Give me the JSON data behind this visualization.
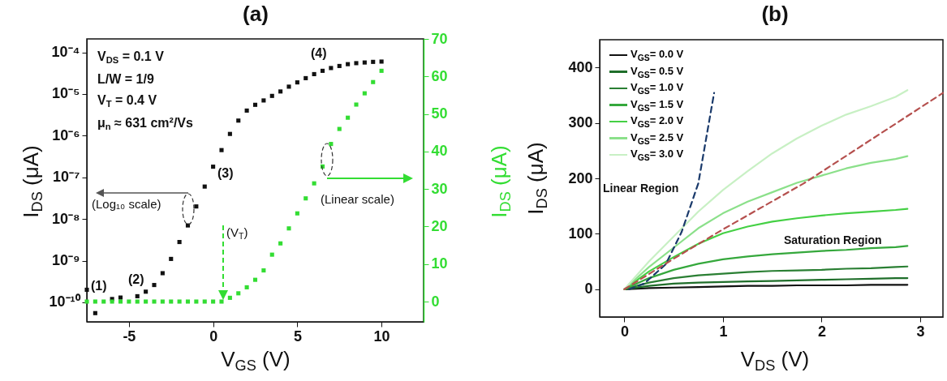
{
  "chart_data": [
    {
      "type": "scatter",
      "title": "(a)",
      "xlabel": "V$_{GS}$ (V)",
      "ylabel": "I$_{DS}$ (μA)",
      "y2label": "I$_{DS}$ (μA)",
      "marker": "square",
      "log": "y",
      "grid": false,
      "legend": false,
      "x": [
        -7.5,
        -7.0,
        -6.5,
        -6.0,
        -5.5,
        -5.0,
        -4.5,
        -4.0,
        -3.5,
        -3.0,
        -2.5,
        -2.0,
        -1.5,
        -1.0,
        -0.5,
        0,
        0.5,
        1.0,
        1.5,
        2.0,
        2.5,
        3.0,
        3.5,
        4.0,
        4.5,
        5.0,
        5.5,
        6.0,
        6.5,
        7.0,
        7.5,
        8.0,
        8.5,
        9.0,
        9.5,
        10.0
      ],
      "series": [
        {
          "color": "#111111",
          "values": [
            2e-10,
            5.5e-11,
            null,
            1.2e-10,
            1.3e-10,
            null,
            1.4e-10,
            1.8e-10,
            2.6e-10,
            5e-10,
            1.1e-09,
            2.8e-09,
            7e-09,
            2e-08,
            6e-08,
            1.8e-07,
            4.5e-07,
            1.1e-06,
            2.3e-06,
            4e-06,
            5.5e-06,
            7e-06,
            9e-06,
            1.15e-05,
            1.5e-05,
            1.9e-05,
            2.4e-05,
            3e-05,
            3.6e-05,
            4.2e-05,
            4.7e-05,
            5.2e-05,
            5.5e-05,
            5.7e-05,
            5.9e-05,
            6e-05
          ]
        },
        {
          "color": "#33dd33",
          "axis": "y2",
          "values": [
            0,
            0,
            0,
            0,
            0,
            0,
            0,
            0,
            0,
            0,
            0,
            0,
            0,
            0,
            0,
            0,
            0,
            1,
            2.2,
            3.8,
            5.8,
            8.3,
            12.5,
            15.5,
            19.5,
            23.5,
            27.5,
            31.5,
            36,
            42,
            46,
            49,
            52.5,
            55.5,
            58.5,
            61.5
          ]
        }
      ],
      "xlim": [
        -7.5,
        12.5
      ],
      "xticks": [
        -5,
        0,
        5,
        10
      ],
      "ylim": [
        3.4e-11,
        0.00021
      ],
      "yticks": [
        {
          "value": 0.0001,
          "label": "10⁻⁴"
        },
        {
          "value": 1e-05,
          "label": "10⁻⁵"
        },
        {
          "value": 1e-06,
          "label": "10⁻⁶"
        },
        {
          "value": 1e-07,
          "label": "10⁻⁷"
        },
        {
          "value": 1e-08,
          "label": "10⁻⁸"
        },
        {
          "value": 1e-09,
          "label": "10⁻⁹"
        },
        {
          "value": 1e-10,
          "label": "10⁻¹⁰"
        }
      ],
      "y2lim": [
        -5.4,
        70
      ],
      "y2ticks": [
        0,
        10,
        20,
        30,
        40,
        50,
        60,
        70
      ],
      "annotations": [
        "V$_{DS}$ = 0.1 V",
        "L/W = 1/9",
        "V$_{T}$ = 0.4 V",
        "μ$_{n}$ ≈ 631 cm²/Vs",
        "(1)",
        "(2)",
        "(3)",
        "(4)",
        "(Log₁₀ scale)",
        "(V$_{T}$)",
        "(Linear scale)"
      ]
    },
    {
      "type": "line",
      "title": "(b)",
      "xlabel": "V$_{DS}$ (V)",
      "ylabel": "I$_{DS}$ (μA)",
      "grid": false,
      "legend": "top left",
      "x": [
        0,
        0.25,
        0.5,
        0.75,
        1.0,
        1.25,
        1.5,
        1.75,
        2.0,
        2.25,
        2.5,
        2.75,
        2.87
      ],
      "series": [
        {
          "name": "V$_{GS}$= 0.0 V",
          "color": "#111111",
          "values": [
            0,
            2,
            3,
            4,
            5,
            6,
            6,
            7,
            7,
            7,
            8,
            8,
            8
          ]
        },
        {
          "name": "V$_{GS}$= 0.5 V",
          "color": "#1f6e2a",
          "values": [
            0,
            6,
            10,
            12,
            13,
            14,
            15,
            16,
            17,
            18,
            19,
            20,
            20
          ]
        },
        {
          "name": "V$_{GS}$= 1.0 V",
          "color": "#2a7f33",
          "values": [
            0,
            12,
            20,
            25,
            28,
            31,
            33,
            34,
            35,
            37,
            38,
            40,
            41
          ]
        },
        {
          "name": "V$_{GS}$= 1.5 V",
          "color": "#35a83c",
          "values": [
            0,
            20,
            35,
            46,
            54,
            59,
            63,
            66,
            69,
            71,
            74,
            76,
            78
          ]
        },
        {
          "name": "V$_{GS}$= 2.0 V",
          "color": "#44d044",
          "values": [
            0,
            32,
            58,
            82,
            101,
            113,
            122,
            128,
            133,
            137,
            140,
            143,
            145
          ]
        },
        {
          "name": "V$_{GS}$= 2.5 V",
          "color": "#8be08a",
          "values": [
            0,
            40,
            75,
            110,
            137,
            158,
            175,
            192,
            205,
            218,
            228,
            235,
            240
          ]
        },
        {
          "name": "V$_{GS}$= 3.0 V",
          "color": "#c8f0c4",
          "values": [
            0,
            50,
            95,
            140,
            179,
            213,
            245,
            272,
            295,
            315,
            330,
            347,
            359
          ]
        },
        {
          "type": "line",
          "color": "#1a3a6b",
          "line_style": "dashed",
          "x": [
            0.05,
            0.2,
            0.42,
            0.58,
            0.75,
            0.91
          ],
          "values": [
            0,
            10,
            45,
            103,
            191,
            354
          ]
        },
        {
          "type": "line",
          "color": "#b5504e",
          "line_style": "dashed",
          "x": [
            0,
            0.5,
            1.0,
            1.82,
            3.23
          ],
          "values": [
            0,
            55,
            108,
            191,
            354
          ]
        }
      ],
      "xlim": [
        -0.25,
        3.23
      ],
      "xticks": [
        0,
        1,
        2,
        3
      ],
      "ylim": [
        -50,
        450
      ],
      "yticks": [
        0,
        100,
        200,
        300,
        400
      ],
      "annotations": [
        "Linear Region",
        "Saturation Region"
      ]
    }
  ]
}
